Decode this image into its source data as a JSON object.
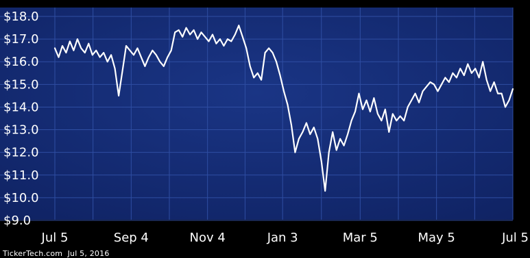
{
  "chart_data": {
    "type": "line",
    "y_tick_labels": [
      "$9.0",
      "$10.0",
      "$11.0",
      "$12.0",
      "$13.0",
      "$14.0",
      "$15.0",
      "$16.0",
      "$17.0",
      "$18.0"
    ],
    "y_ticks": [
      9,
      10,
      11,
      12,
      13,
      14,
      15,
      16,
      17,
      18
    ],
    "ylim": [
      9,
      18.5
    ],
    "x_tick_labels": [
      "Jul 5",
      "Sep 4",
      "Nov 4",
      "Jan 3",
      "Mar 5",
      "May 5",
      "Jul 5"
    ],
    "x_ticks": [
      "2015-07-05",
      "2015-09-04",
      "2015-11-04",
      "2016-01-03",
      "2016-03-05",
      "2016-05-05",
      "2016-07-05"
    ],
    "xlim": [
      "2015-07-05",
      "2016-07-05"
    ],
    "grid": true,
    "colors": {
      "background_outer": "#000000",
      "plot_background": "#12286f",
      "grid": "#2f4ea3",
      "line": "#ffffff"
    },
    "series": [
      {
        "x": [
          "2015-07-05",
          "2015-07-08",
          "2015-07-11",
          "2015-07-14",
          "2015-07-17",
          "2015-07-20",
          "2015-07-23",
          "2015-07-26",
          "2015-07-29",
          "2015-08-01",
          "2015-08-04",
          "2015-08-07",
          "2015-08-10",
          "2015-08-13",
          "2015-08-16",
          "2015-08-19",
          "2015-08-22",
          "2015-08-25",
          "2015-08-28",
          "2015-08-31",
          "2015-09-03",
          "2015-09-06",
          "2015-09-09",
          "2015-09-12",
          "2015-09-15",
          "2015-09-18",
          "2015-09-21",
          "2015-09-24",
          "2015-09-27",
          "2015-09-30",
          "2015-10-03",
          "2015-10-06",
          "2015-10-09",
          "2015-10-12",
          "2015-10-15",
          "2015-10-18",
          "2015-10-21",
          "2015-10-24",
          "2015-10-27",
          "2015-10-30",
          "2015-11-02",
          "2015-11-05",
          "2015-11-08",
          "2015-11-11",
          "2015-11-14",
          "2015-11-17",
          "2015-11-20",
          "2015-11-23",
          "2015-11-26",
          "2015-11-29",
          "2015-12-02",
          "2015-12-05",
          "2015-12-08",
          "2015-12-11",
          "2015-12-14",
          "2015-12-17",
          "2015-12-20",
          "2015-12-23",
          "2015-12-26",
          "2015-12-29",
          "2016-01-01",
          "2016-01-04",
          "2016-01-07",
          "2016-01-10",
          "2016-01-13",
          "2016-01-16",
          "2016-01-19",
          "2016-01-22",
          "2016-01-25",
          "2016-01-28",
          "2016-01-31",
          "2016-02-03",
          "2016-02-06",
          "2016-02-09",
          "2016-02-12",
          "2016-02-15",
          "2016-02-18",
          "2016-02-21",
          "2016-02-24",
          "2016-02-27",
          "2016-03-01",
          "2016-03-04",
          "2016-03-07",
          "2016-03-10",
          "2016-03-13",
          "2016-03-16",
          "2016-03-19",
          "2016-03-22",
          "2016-03-25",
          "2016-03-28",
          "2016-03-31",
          "2016-04-03",
          "2016-04-06",
          "2016-04-09",
          "2016-04-12",
          "2016-04-15",
          "2016-04-18",
          "2016-04-21",
          "2016-04-24",
          "2016-04-27",
          "2016-04-30",
          "2016-05-03",
          "2016-05-06",
          "2016-05-09",
          "2016-05-12",
          "2016-05-15",
          "2016-05-18",
          "2016-05-21",
          "2016-05-24",
          "2016-05-27",
          "2016-05-30",
          "2016-06-02",
          "2016-06-05",
          "2016-06-08",
          "2016-06-11",
          "2016-06-14",
          "2016-06-17",
          "2016-06-20",
          "2016-06-23",
          "2016-06-26",
          "2016-06-29",
          "2016-07-02",
          "2016-07-05"
        ],
        "values": [
          16.6,
          16.2,
          16.7,
          16.4,
          16.9,
          16.5,
          17.0,
          16.6,
          16.4,
          16.8,
          16.3,
          16.5,
          16.2,
          16.4,
          16.0,
          16.3,
          15.7,
          14.5,
          15.6,
          16.7,
          16.5,
          16.3,
          16.6,
          16.2,
          15.8,
          16.2,
          16.5,
          16.3,
          16.0,
          15.8,
          16.2,
          16.5,
          17.3,
          17.4,
          17.1,
          17.5,
          17.2,
          17.4,
          17.0,
          17.3,
          17.1,
          16.9,
          17.2,
          16.8,
          17.0,
          16.7,
          17.0,
          16.9,
          17.2,
          17.6,
          17.1,
          16.6,
          15.8,
          15.3,
          15.5,
          15.2,
          16.4,
          16.6,
          16.4,
          16.0,
          15.4,
          14.7,
          14.1,
          13.2,
          12.0,
          12.6,
          12.9,
          13.3,
          12.8,
          13.1,
          12.6,
          11.6,
          10.3,
          12.0,
          12.9,
          12.1,
          12.6,
          12.3,
          12.8,
          13.4,
          13.8,
          14.6,
          13.9,
          14.3,
          13.8,
          14.4,
          13.7,
          13.4,
          13.9,
          12.9,
          13.7,
          13.4,
          13.6,
          13.4,
          14.0,
          14.3,
          14.6,
          14.2,
          14.7,
          14.9,
          15.1,
          15.0,
          14.7,
          15.0,
          15.3,
          15.1,
          15.5,
          15.3,
          15.7,
          15.4,
          15.9,
          15.5,
          15.7,
          15.3,
          16.0,
          15.2,
          14.7,
          15.1,
          14.6,
          14.6,
          14.0,
          14.3,
          14.8
        ]
      }
    ]
  },
  "footer": {
    "source": "TickerTech.com  Jul 5, 2016"
  }
}
